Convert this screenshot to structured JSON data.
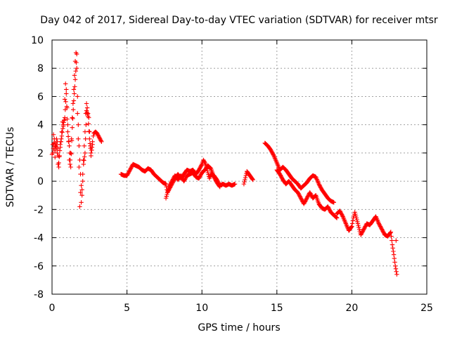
{
  "chart_data": {
    "type": "scatter",
    "title": "Day 042 of 2017, Sidereal Day-to-day VTEC variation (SDTVAR) for receiver mtsr",
    "xlabel": "GPS time / hours",
    "ylabel": "SDTVAR / TECUs",
    "xlim": [
      0,
      25
    ],
    "ylim": [
      -8,
      10
    ],
    "xticks": [
      0,
      5,
      10,
      15,
      20,
      25
    ],
    "yticks": [
      -8,
      -6,
      -4,
      -2,
      0,
      2,
      4,
      6,
      8,
      10
    ],
    "grid": true,
    "marker": "plus",
    "color": "#ff0000",
    "series": [
      {
        "name": "SDTVAR",
        "segments": [
          [
            [
              0.0,
              1.9
            ],
            [
              0.05,
              2.6
            ],
            [
              0.1,
              3.3
            ],
            [
              0.15,
              2.2
            ],
            [
              0.2,
              1.7
            ],
            [
              0.25,
              2.5
            ],
            [
              0.3,
              3.0
            ],
            [
              0.35,
              2.0
            ],
            [
              0.4,
              1.2
            ],
            [
              0.45,
              1.0
            ],
            [
              0.5,
              1.8
            ],
            [
              0.55,
              2.4
            ],
            [
              0.6,
              2.8
            ],
            [
              0.65,
              3.5
            ],
            [
              0.7,
              4.2
            ],
            [
              0.75,
              3.9
            ],
            [
              0.8,
              4.3
            ],
            [
              0.85,
              5.8
            ],
            [
              0.9,
              6.9
            ],
            [
              0.95,
              6.5
            ],
            [
              1.0,
              5.2
            ],
            [
              1.05,
              4.0
            ],
            [
              1.1,
              2.8
            ],
            [
              1.15,
              1.5
            ],
            [
              1.2,
              1.2
            ],
            [
              1.25,
              2.0
            ],
            [
              1.3,
              3.0
            ],
            [
              1.35,
              4.5
            ],
            [
              1.4,
              5.5
            ],
            [
              1.45,
              6.5
            ],
            [
              1.5,
              7.5
            ],
            [
              1.55,
              8.5
            ],
            [
              1.6,
              9.1
            ],
            [
              1.65,
              8.0
            ],
            [
              1.7,
              6.0
            ],
            [
              1.75,
              4.0
            ],
            [
              1.8,
              2.5
            ],
            [
              1.85,
              1.5
            ],
            [
              1.9,
              0.5
            ],
            [
              1.95,
              -0.3
            ],
            [
              2.0,
              -1.0
            ],
            [
              2.05,
              0.5
            ],
            [
              2.1,
              1.5
            ],
            [
              2.15,
              2.5
            ],
            [
              2.2,
              3.5
            ],
            [
              2.25,
              4.8
            ],
            [
              2.3,
              5.5
            ],
            [
              2.35,
              5.2
            ],
            [
              2.4,
              4.8
            ],
            [
              2.45,
              4.5
            ],
            [
              2.5,
              3.5
            ],
            [
              2.55,
              2.5
            ],
            [
              2.6,
              1.8
            ],
            [
              2.65,
              2.2
            ],
            [
              2.7,
              2.8
            ],
            [
              2.75,
              3.2
            ],
            [
              2.8,
              3.4
            ],
            [
              2.9,
              3.5
            ],
            [
              3.0,
              3.4
            ],
            [
              3.1,
              3.2
            ],
            [
              3.2,
              3.0
            ],
            [
              3.3,
              2.8
            ]
          ],
          [
            [
              0.05,
              2.0
            ],
            [
              0.15,
              3.0
            ],
            [
              0.25,
              2.2
            ],
            [
              0.35,
              2.8
            ],
            [
              0.45,
              1.3
            ],
            [
              0.55,
              2.6
            ],
            [
              0.65,
              3.2
            ],
            [
              0.75,
              4.0
            ],
            [
              0.85,
              4.5
            ],
            [
              0.95,
              6.2
            ],
            [
              1.05,
              3.5
            ],
            [
              1.15,
              2.5
            ],
            [
              1.25,
              1.0
            ],
            [
              1.35,
              3.8
            ],
            [
              1.45,
              5.7
            ],
            [
              1.55,
              7.2
            ],
            [
              1.65,
              9.0
            ],
            [
              1.7,
              4.8
            ],
            [
              1.75,
              3.0
            ],
            [
              1.8,
              1.0
            ],
            [
              1.85,
              -1.8
            ],
            [
              1.9,
              -0.8
            ],
            [
              1.95,
              -1.5
            ],
            [
              2.0,
              -0.6
            ],
            [
              2.05,
              0.0
            ],
            [
              2.1,
              1.2
            ],
            [
              2.2,
              2.0
            ],
            [
              2.3,
              5.0
            ],
            [
              2.4,
              4.6
            ],
            [
              2.5,
              3.0
            ],
            [
              2.6,
              2.0
            ],
            [
              2.7,
              2.6
            ]
          ],
          [
            [
              4.6,
              0.5
            ],
            [
              4.8,
              0.4
            ],
            [
              5.0,
              0.4
            ],
            [
              5.2,
              0.8
            ],
            [
              5.4,
              1.2
            ],
            [
              5.6,
              1.1
            ],
            [
              5.8,
              1.0
            ],
            [
              6.0,
              0.8
            ],
            [
              6.2,
              0.7
            ],
            [
              6.4,
              0.9
            ],
            [
              6.6,
              0.8
            ],
            [
              6.8,
              0.5
            ],
            [
              7.0,
              0.3
            ],
            [
              7.2,
              0.1
            ],
            [
              7.4,
              -0.1
            ],
            [
              7.6,
              -0.2
            ],
            [
              7.7,
              -0.8
            ],
            [
              7.8,
              -0.6
            ],
            [
              8.0,
              -0.2
            ],
            [
              8.2,
              0.2
            ],
            [
              8.4,
              0.5
            ],
            [
              8.6,
              0.2
            ],
            [
              8.8,
              0.5
            ],
            [
              9.0,
              0.8
            ],
            [
              9.2,
              0.7
            ],
            [
              9.4,
              0.8
            ],
            [
              9.6,
              0.5
            ],
            [
              9.8,
              0.8
            ],
            [
              10.0,
              1.2
            ],
            [
              10.1,
              1.5
            ],
            [
              10.2,
              1.3
            ],
            [
              10.3,
              1.0
            ],
            [
              10.4,
              0.6
            ],
            [
              10.5,
              0.2
            ],
            [
              10.6,
              0.5
            ],
            [
              10.8,
              0.4
            ],
            [
              11.0,
              0.1
            ],
            [
              11.2,
              -0.3
            ],
            [
              11.4,
              -0.2
            ],
            [
              11.6,
              -0.3
            ],
            [
              11.8,
              -0.2
            ],
            [
              12.0,
              -0.3
            ],
            [
              12.2,
              -0.2
            ]
          ],
          [
            [
              7.6,
              -1.2
            ],
            [
              7.8,
              -0.4
            ],
            [
              8.0,
              0.0
            ],
            [
              8.2,
              0.4
            ],
            [
              8.4,
              0.1
            ],
            [
              8.6,
              0.4
            ],
            [
              8.8,
              0.0
            ],
            [
              9.0,
              0.4
            ],
            [
              9.2,
              0.5
            ],
            [
              9.4,
              0.6
            ],
            [
              9.6,
              0.3
            ],
            [
              9.8,
              0.2
            ],
            [
              10.0,
              0.6
            ],
            [
              10.2,
              0.8
            ],
            [
              10.4,
              1.1
            ],
            [
              10.6,
              0.9
            ],
            [
              10.8,
              0.3
            ],
            [
              11.0,
              -0.1
            ],
            [
              11.2,
              -0.4
            ]
          ],
          [
            [
              12.8,
              -0.2
            ],
            [
              13.0,
              0.7
            ],
            [
              13.2,
              0.4
            ],
            [
              13.4,
              0.1
            ]
          ],
          [
            [
              14.2,
              2.7
            ],
            [
              14.4,
              2.5
            ],
            [
              14.6,
              2.2
            ],
            [
              14.8,
              1.8
            ],
            [
              15.0,
              1.3
            ],
            [
              15.2,
              0.8
            ],
            [
              15.4,
              1.0
            ],
            [
              15.6,
              0.8
            ],
            [
              15.8,
              0.5
            ],
            [
              16.0,
              0.2
            ],
            [
              16.2,
              0.0
            ],
            [
              16.4,
              -0.2
            ],
            [
              16.6,
              -0.5
            ],
            [
              16.8,
              -0.3
            ],
            [
              17.0,
              -0.1
            ],
            [
              17.2,
              0.2
            ],
            [
              17.4,
              0.4
            ],
            [
              17.6,
              0.3
            ],
            [
              17.8,
              -0.2
            ],
            [
              18.0,
              -0.6
            ],
            [
              18.2,
              -0.9
            ],
            [
              18.4,
              -1.2
            ],
            [
              18.6,
              -1.4
            ],
            [
              18.8,
              -1.5
            ]
          ],
          [
            [
              15.0,
              0.8
            ],
            [
              15.2,
              0.5
            ],
            [
              15.4,
              0.1
            ],
            [
              15.6,
              -0.2
            ],
            [
              15.8,
              0.0
            ],
            [
              16.0,
              -0.3
            ],
            [
              16.2,
              -0.6
            ],
            [
              16.4,
              -0.8
            ],
            [
              16.6,
              -1.2
            ],
            [
              16.8,
              -1.6
            ],
            [
              17.0,
              -1.2
            ],
            [
              17.2,
              -0.8
            ],
            [
              17.4,
              -1.2
            ],
            [
              17.6,
              -1.0
            ],
            [
              17.8,
              -1.6
            ],
            [
              18.0,
              -1.9
            ],
            [
              18.2,
              -2.0
            ],
            [
              18.4,
              -1.8
            ],
            [
              18.6,
              -2.2
            ],
            [
              18.8,
              -2.4
            ],
            [
              19.0,
              -2.6
            ]
          ],
          [
            [
              19.0,
              -2.3
            ],
            [
              19.2,
              -2.1
            ],
            [
              19.4,
              -2.5
            ],
            [
              19.6,
              -3.0
            ],
            [
              19.8,
              -3.5
            ],
            [
              20.0,
              -3.2
            ],
            [
              20.1,
              -2.6
            ],
            [
              20.2,
              -2.2
            ],
            [
              20.4,
              -3.0
            ],
            [
              20.6,
              -3.8
            ],
            [
              20.8,
              -3.4
            ],
            [
              21.0,
              -3.0
            ],
            [
              21.2,
              -3.1
            ],
            [
              21.4,
              -2.8
            ],
            [
              21.6,
              -2.5
            ],
            [
              21.8,
              -3.0
            ],
            [
              22.0,
              -3.4
            ],
            [
              22.2,
              -3.8
            ],
            [
              22.4,
              -3.9
            ],
            [
              22.6,
              -3.6
            ],
            [
              22.7,
              -4.5
            ],
            [
              22.8,
              -5.2
            ],
            [
              22.9,
              -6.0
            ],
            [
              23.0,
              -6.6
            ],
            [
              22.95,
              -4.2
            ]
          ]
        ]
      }
    ]
  }
}
